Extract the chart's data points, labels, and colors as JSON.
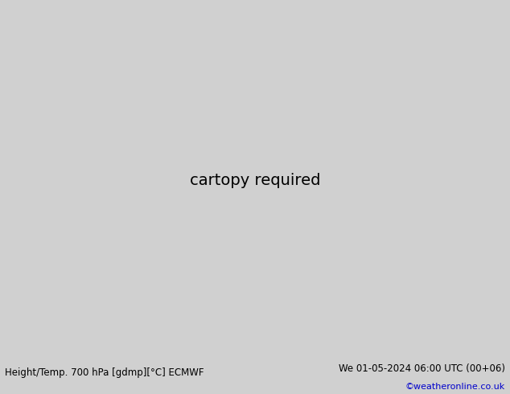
{
  "title_left": "Height/Temp. 700 hPa [gdmp][°C] ECMWF",
  "title_right": "We 01-05-2024 06:00 UTC (00+06)",
  "copyright": "©weatheronline.co.uk",
  "bg_color": "#d0d0d0",
  "land_color": "#90ee90",
  "border_color": "#888888",
  "fig_width": 6.34,
  "fig_height": 4.9,
  "dpi": 100,
  "map_extent": [
    -120,
    15,
    -60,
    17
  ],
  "title_fontsize": 8.5,
  "copyright_fontsize": 8,
  "copyright_color": "#0000cc",
  "label_fontsize": 6.5,
  "contour_lw": 1.3
}
